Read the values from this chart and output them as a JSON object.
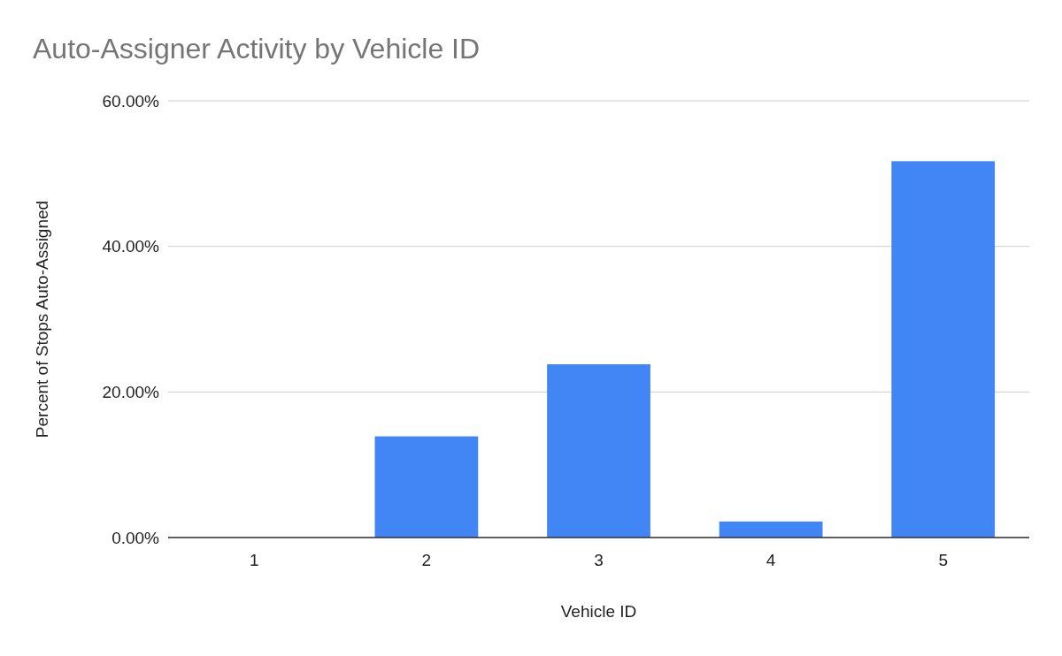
{
  "chart_data": {
    "type": "bar",
    "title": "Auto-Assigner Activity by Vehicle ID",
    "xlabel": "Vehicle ID",
    "ylabel": "Percent of Stops Auto-Assigned",
    "categories": [
      "1",
      "2",
      "3",
      "4",
      "5"
    ],
    "values": [
      0,
      13.9,
      23.8,
      2.2,
      51.7
    ],
    "color": "#4285f4",
    "ylim": [
      0,
      60
    ],
    "yticks": [
      {
        "value": 0,
        "label": "0.00%"
      },
      {
        "value": 20,
        "label": "20.00%"
      },
      {
        "value": 40,
        "label": "40.00%"
      },
      {
        "value": 60,
        "label": "60.00%"
      }
    ],
    "grid": "y"
  }
}
